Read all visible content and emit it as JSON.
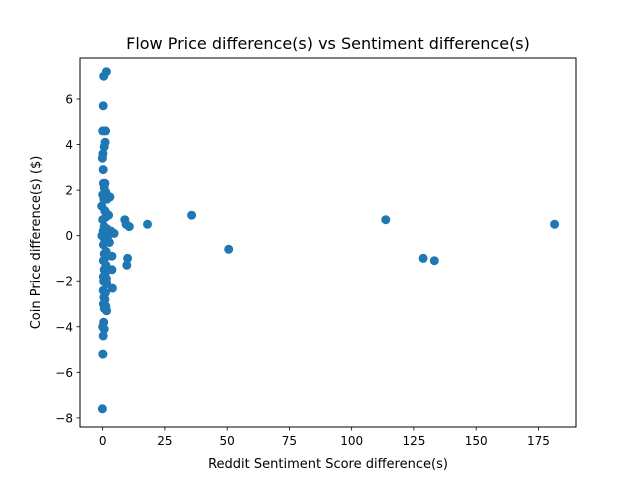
{
  "chart_data": {
    "type": "scatter",
    "title": "Flow Price difference(s) vs Sentiment difference(s)",
    "xlabel": "Reddit Sentiment Score difference(s)",
    "ylabel": "Coin Price difference(s) ($)",
    "xlim": [
      -9.1,
      190.1
    ],
    "ylim": [
      -8.4,
      7.8
    ],
    "xticks": [
      0,
      25,
      50,
      75,
      100,
      125,
      150,
      175
    ],
    "xtick_labels": [
      "0",
      "25",
      "50",
      "75",
      "100",
      "125",
      "150",
      "175"
    ],
    "yticks": [
      -8,
      -6,
      -4,
      -2,
      0,
      2,
      4,
      6
    ],
    "ytick_labels": [
      "−8",
      "−6",
      "−4",
      "−2",
      "0",
      "2",
      "4",
      "6"
    ],
    "grid": false,
    "marker_color": "#1f77b4",
    "points": [
      [
        1.5,
        7.2
      ],
      [
        0.4,
        7.0
      ],
      [
        0.2,
        5.7
      ],
      [
        1.2,
        4.6
      ],
      [
        0.0,
        4.6
      ],
      [
        1.0,
        4.1
      ],
      [
        0.6,
        3.9
      ],
      [
        0.1,
        3.6
      ],
      [
        -0.1,
        3.4
      ],
      [
        0.2,
        2.9
      ],
      [
        0.9,
        2.3
      ],
      [
        0.3,
        2.3
      ],
      [
        0.6,
        2.1
      ],
      [
        1.3,
        1.9
      ],
      [
        0.0,
        1.8
      ],
      [
        2.9,
        1.7
      ],
      [
        0.5,
        1.6
      ],
      [
        1.7,
        1.6
      ],
      [
        -0.4,
        1.3
      ],
      [
        0.8,
        1.1
      ],
      [
        1.4,
        1.0
      ],
      [
        2.4,
        0.9
      ],
      [
        1.1,
        0.8
      ],
      [
        0.0,
        0.7
      ],
      [
        8.9,
        0.7
      ],
      [
        35.7,
        0.9
      ],
      [
        113.7,
        0.7
      ],
      [
        9.4,
        0.5
      ],
      [
        10.7,
        0.4
      ],
      [
        18.0,
        0.5
      ],
      [
        181.5,
        0.5
      ],
      [
        0.6,
        0.4
      ],
      [
        1.7,
        0.3
      ],
      [
        3.3,
        0.2
      ],
      [
        4.6,
        0.1
      ],
      [
        0.2,
        0.2
      ],
      [
        -0.3,
        0.0
      ],
      [
        1.9,
        -0.1
      ],
      [
        0.9,
        -0.2
      ],
      [
        2.7,
        -0.3
      ],
      [
        0.3,
        -0.4
      ],
      [
        50.6,
        -0.6
      ],
      [
        1.4,
        -0.7
      ],
      [
        0.6,
        -0.8
      ],
      [
        3.7,
        -0.9
      ],
      [
        1.9,
        -0.9
      ],
      [
        10.0,
        -1.0
      ],
      [
        128.7,
        -1.0
      ],
      [
        133.2,
        -1.1
      ],
      [
        0.3,
        -1.1
      ],
      [
        9.7,
        -1.3
      ],
      [
        1.3,
        -1.3
      ],
      [
        0.6,
        -1.5
      ],
      [
        3.7,
        -1.5
      ],
      [
        1.0,
        -1.7
      ],
      [
        0.3,
        -1.8
      ],
      [
        1.5,
        -1.9
      ],
      [
        0.4,
        -2.0
      ],
      [
        1.6,
        -2.1
      ],
      [
        3.9,
        -2.3
      ],
      [
        0.2,
        -2.4
      ],
      [
        1.1,
        -2.5
      ],
      [
        0.5,
        -2.7
      ],
      [
        0.9,
        -2.8
      ],
      [
        0.3,
        -3.0
      ],
      [
        1.3,
        -3.1
      ],
      [
        0.7,
        -3.2
      ],
      [
        1.6,
        -3.3
      ],
      [
        0.4,
        -3.8
      ],
      [
        0.0,
        -4.0
      ],
      [
        0.6,
        -4.1
      ],
      [
        0.2,
        -4.4
      ],
      [
        0.1,
        -5.2
      ],
      [
        -0.1,
        -7.6
      ]
    ]
  }
}
